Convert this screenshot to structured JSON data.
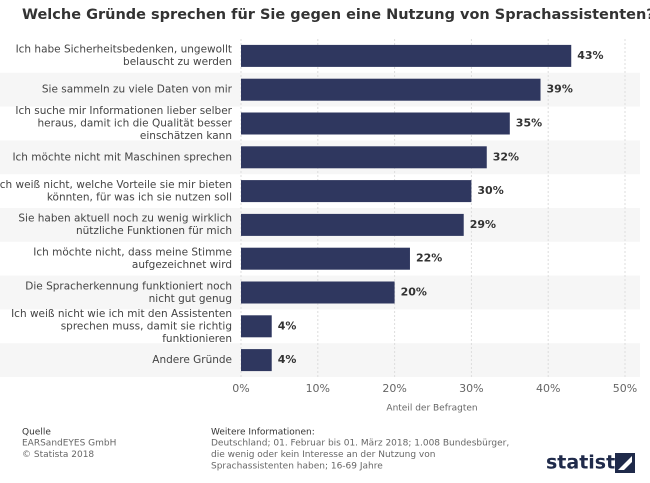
{
  "chart_data": {
    "type": "bar",
    "orientation": "horizontal",
    "title": "Welche Gründe sprechen für Sie gegen eine Nutzung von Sprachassistenten?",
    "categories": [
      [
        "Ich habe Sicherheitsbedenken, ungewollt",
        "belauscht zu werden"
      ],
      [
        "Sie sammeln zu viele Daten von mir"
      ],
      [
        "Ich suche mir Informationen lieber selber",
        "heraus, damit ich die Qualität besser",
        "einschätzen kann"
      ],
      [
        "Ich möchte nicht mit Maschinen sprechen"
      ],
      [
        "Ich weiß nicht, welche Vorteile sie mir bieten",
        "könnten, für was ich sie nutzen soll"
      ],
      [
        "Sie haben aktuell noch zu wenig wirklich",
        "nützliche Funktionen für mich"
      ],
      [
        "Ich möchte nicht, dass meine Stimme",
        "aufgezeichnet wird"
      ],
      [
        "Die Spracherkennung funktioniert noch",
        "nicht gut genug"
      ],
      [
        "Ich weiß nicht wie ich mit den Assistenten",
        "sprechen muss, damit sie richtig",
        "funktionieren"
      ],
      [
        "Andere Gründe"
      ]
    ],
    "values": [
      43,
      39,
      35,
      32,
      30,
      29,
      22,
      20,
      4,
      4
    ],
    "value_labels": [
      "43%",
      "39%",
      "35%",
      "32%",
      "30%",
      "29%",
      "22%",
      "20%",
      "4%",
      "4%"
    ],
    "color": "#2f375f",
    "xlim": [
      0,
      50
    ],
    "xticks": [
      {
        "value": 0,
        "label": "0%"
      },
      {
        "value": 10,
        "label": "10%"
      },
      {
        "value": 20,
        "label": "20%"
      },
      {
        "value": 30,
        "label": "30%"
      },
      {
        "value": 40,
        "label": "40%"
      },
      {
        "value": 50,
        "label": "50%"
      }
    ],
    "xlabel": "Anteil der Befragten",
    "grid": true
  },
  "footer": {
    "source_title": "Quelle",
    "source_lines": [
      "EARSandEYES GmbH",
      "© Statista 2018"
    ],
    "info_title": "Weitere Informationen:",
    "info_lines": [
      "Deutschland; 01. Februar bis 01. März 2018; 1.008 Bundesbürger,",
      "die wenig oder kein Interesse an der Nutzung von",
      "Sprachassistenten haben; 16-69 Jahre"
    ],
    "logo": "statista"
  }
}
